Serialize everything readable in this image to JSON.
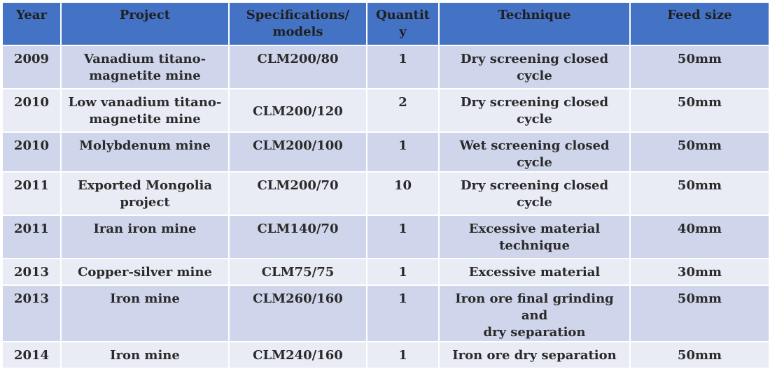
{
  "table": {
    "headers": {
      "year": "Year",
      "project": "Project",
      "specifications": "Specifications/\nmodels",
      "quantity": "Quantit\ny",
      "technique": "Technique",
      "feed_size": "Feed size"
    },
    "rows": [
      {
        "year": "2009",
        "project": "Vanadium titano-\nmagnetite mine",
        "specifications": "CLM200/80",
        "quantity": "1",
        "technique": "Dry screening closed cycle",
        "feed_size": "50mm"
      },
      {
        "year": "2010",
        "project": "Low vanadium titano-\nmagnetite mine",
        "specifications": "CLM200/120",
        "quantity": "2",
        "technique": "Dry screening closed cycle",
        "feed_size": "50mm"
      },
      {
        "year": "2010",
        "project": "Molybdenum mine",
        "specifications": "CLM200/100",
        "quantity": "1",
        "technique": "Wet screening closed cycle",
        "feed_size": "50mm"
      },
      {
        "year": "2011",
        "project": "Exported Mongolia\nproject",
        "specifications": "CLM200/70",
        "quantity": "10",
        "technique": "Dry screening closed cycle",
        "feed_size": "50mm"
      },
      {
        "year": "2011",
        "project": "Iran iron mine",
        "specifications": "CLM140/70",
        "quantity": "1",
        "technique": "Excessive material\ntechnique",
        "feed_size": "40mm"
      },
      {
        "year": "2013",
        "project": "Copper-silver mine",
        "specifications": "CLM75/75",
        "quantity": "1",
        "technique": "Excessive material",
        "feed_size": "30mm"
      },
      {
        "year": "2013",
        "project": "Iron mine",
        "specifications": "CLM260/160",
        "quantity": "1",
        "technique": "Iron ore final grinding and\ndry separation",
        "feed_size": "50mm"
      },
      {
        "year": "2014",
        "project": "Iron mine",
        "specifications": "CLM240/160",
        "quantity": "1",
        "technique": "Iron ore dry separation",
        "feed_size": "50mm"
      }
    ]
  },
  "colors": {
    "header_bg": "#4472c4",
    "row_dark_bg": "#cfd5ea",
    "row_light_bg": "#e9ebf5",
    "border": "#ffffff"
  }
}
